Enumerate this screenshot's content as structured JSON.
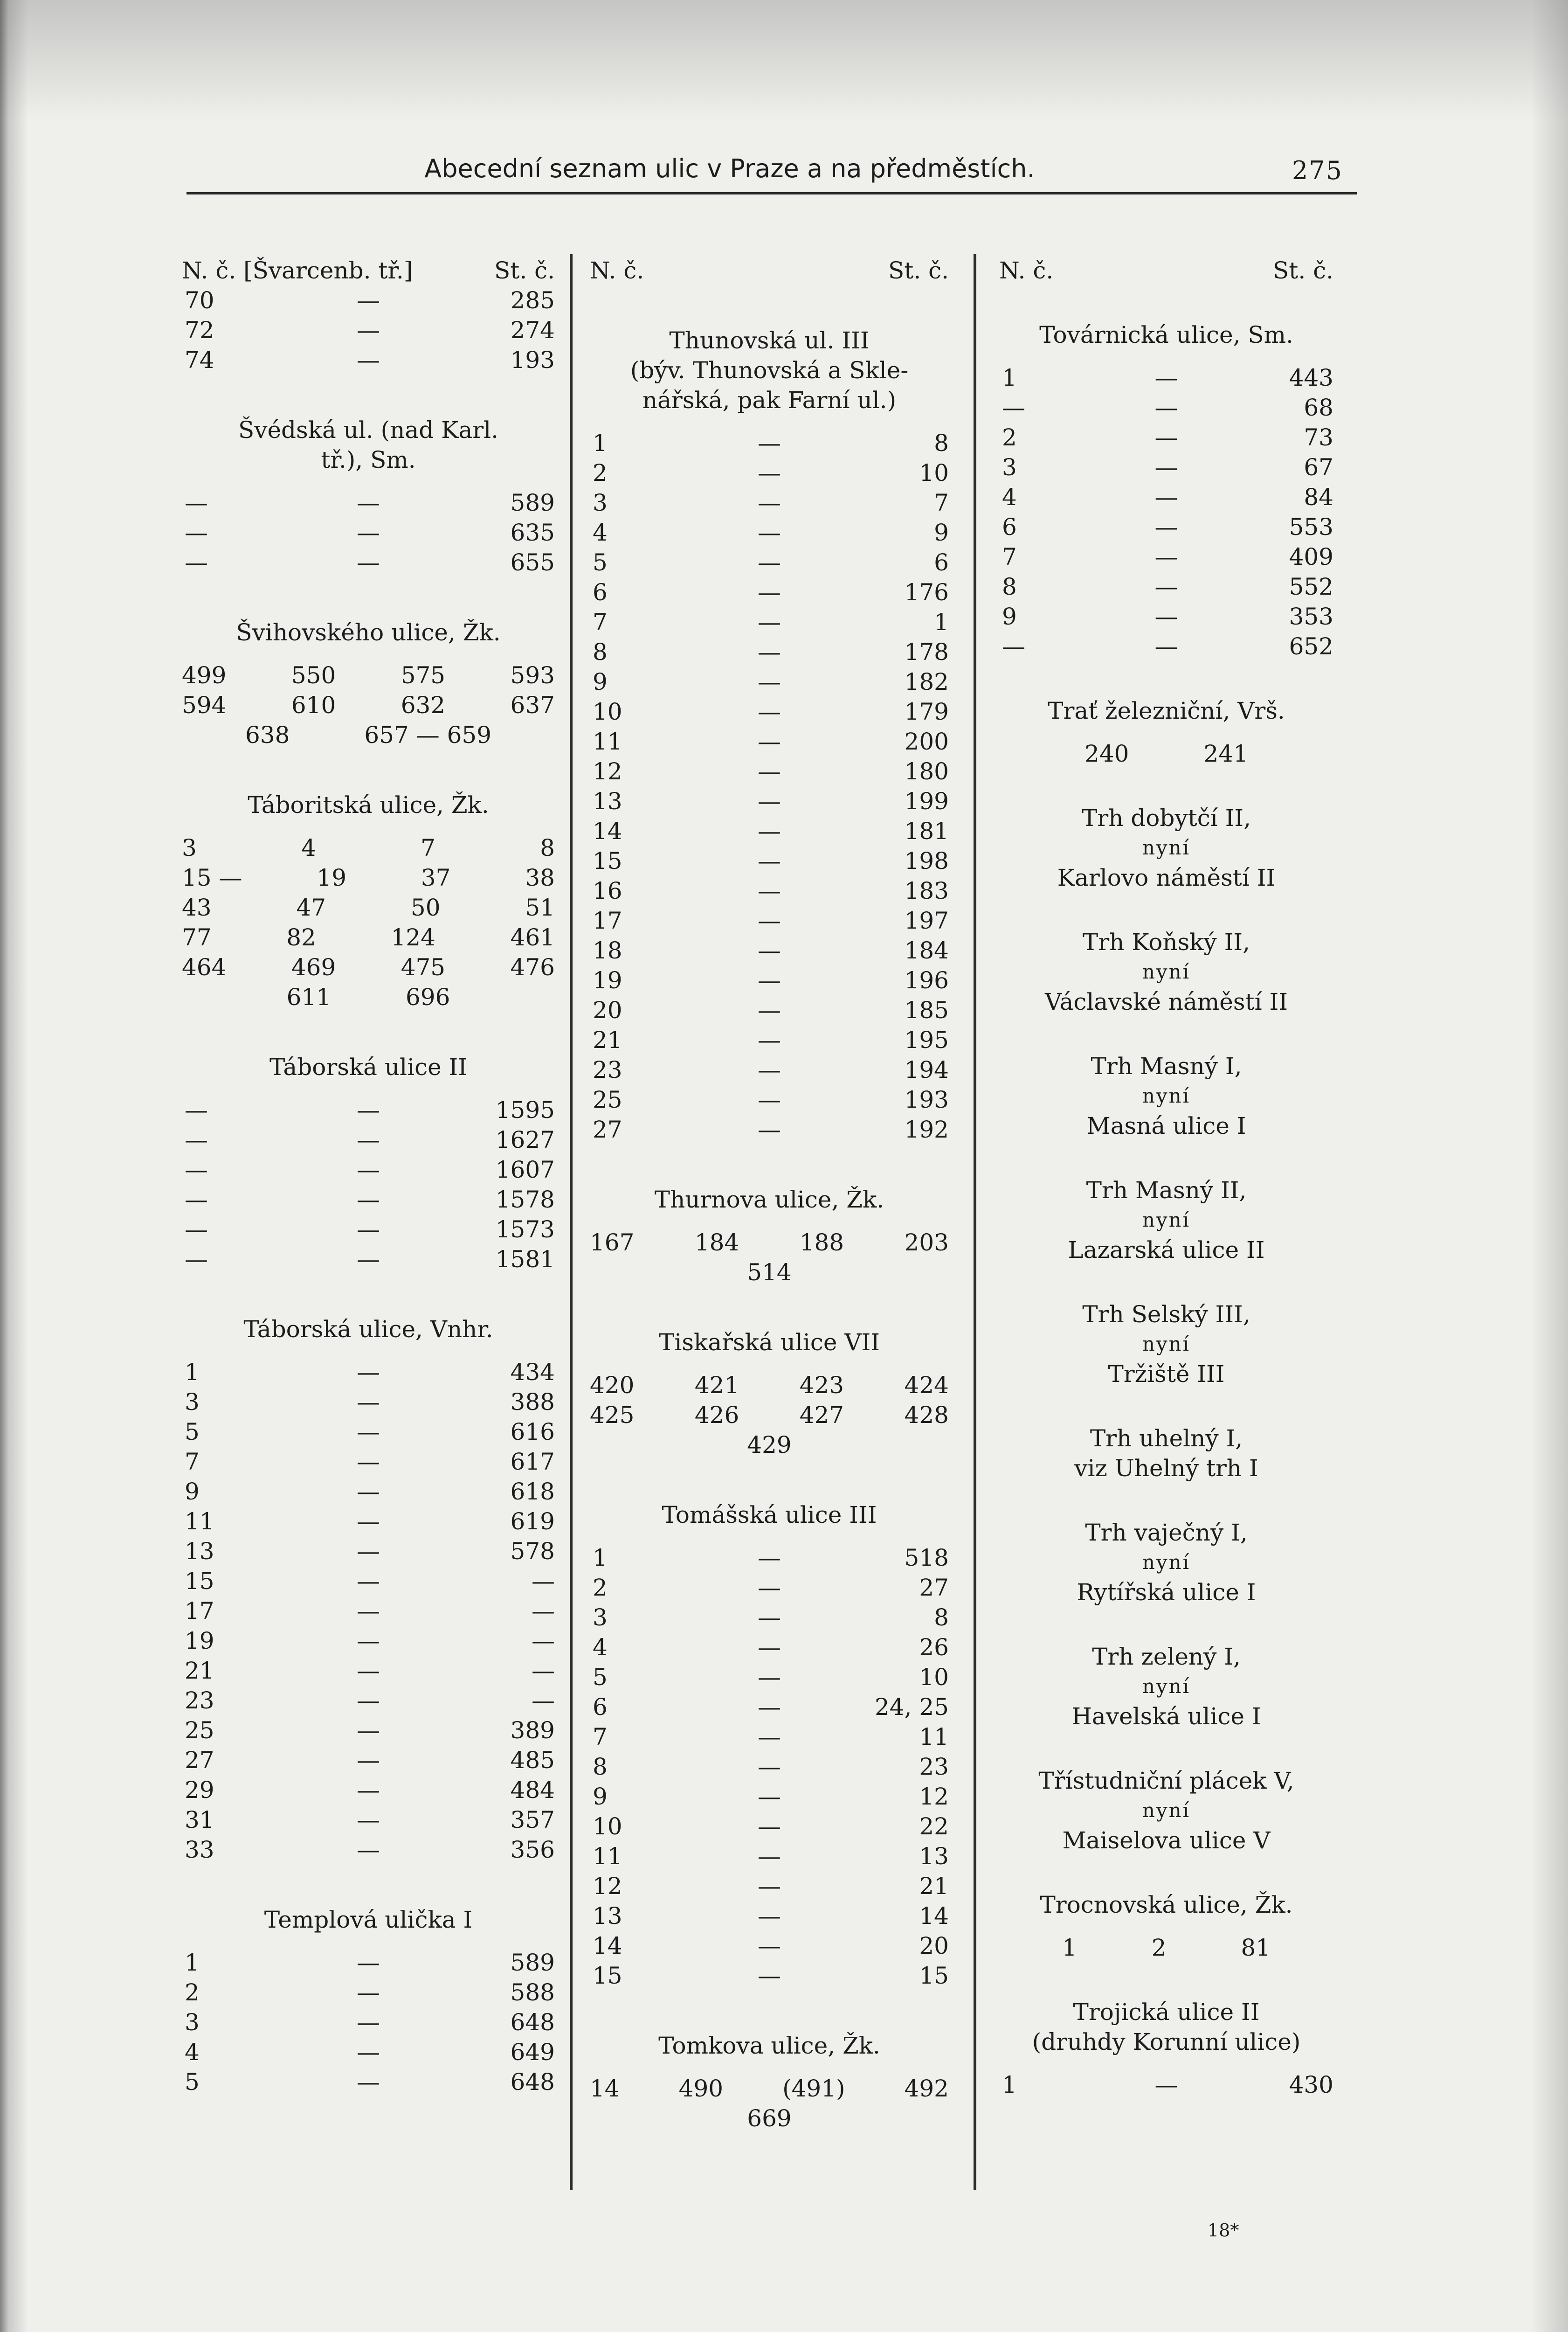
{
  "header": {
    "title": "Abecední seznam ulic v Praze a na předměstích.",
    "page_number": "275"
  },
  "footer": {
    "signature": "18*"
  },
  "columns": [
    {
      "blocks": [
        {
          "type": "head",
          "n": "N. č. [Švarcenb. tř.]",
          "st": "St. č."
        },
        {
          "type": "rows",
          "rows": [
            [
              "70",
              "—",
              "285"
            ],
            [
              "72",
              "—",
              "274"
            ],
            [
              "74",
              "—",
              "193"
            ]
          ]
        },
        {
          "type": "title",
          "lines": [
            "Švédská ul. (nad Karl.",
            "tř.), Sm."
          ]
        },
        {
          "type": "rows",
          "rows": [
            [
              "—",
              "—",
              "589"
            ],
            [
              "—",
              "—",
              "635"
            ],
            [
              "—",
              "—",
              "655"
            ]
          ]
        },
        {
          "type": "title",
          "lines": [
            "Švihovského ulice, Žk."
          ]
        },
        {
          "type": "grid",
          "rows": [
            [
              "499",
              "550",
              "575",
              "593"
            ],
            [
              "594",
              "610",
              "632",
              "637"
            ],
            [
              "638",
              "657 — 659"
            ]
          ]
        },
        {
          "type": "title",
          "lines": [
            "Táboritská ulice, Žk."
          ]
        },
        {
          "type": "grid",
          "rows": [
            [
              "3",
              "4",
              "7",
              "8"
            ],
            [
              "15 —",
              "19",
              "37",
              "38"
            ],
            [
              "43",
              "47",
              "50",
              "51"
            ],
            [
              "77",
              "82",
              "124",
              "461"
            ],
            [
              "464",
              "469",
              "475",
              "476"
            ],
            [
              "611",
              "696"
            ]
          ]
        },
        {
          "type": "title",
          "lines": [
            "Táborská ulice II"
          ]
        },
        {
          "type": "rows",
          "rows": [
            [
              "—",
              "—",
              "1595"
            ],
            [
              "—",
              "—",
              "1627"
            ],
            [
              "—",
              "—",
              "1607"
            ],
            [
              "—",
              "—",
              "1578"
            ],
            [
              "—",
              "—",
              "1573"
            ],
            [
              "—",
              "—",
              "1581"
            ]
          ]
        },
        {
          "type": "title",
          "lines": [
            "Táborská ulice, Vnhr."
          ]
        },
        {
          "type": "rows",
          "rows": [
            [
              "1",
              "—",
              "434"
            ],
            [
              "3",
              "—",
              "388"
            ],
            [
              "5",
              "—",
              "616"
            ],
            [
              "7",
              "—",
              "617"
            ],
            [
              "9",
              "—",
              "618"
            ],
            [
              "11",
              "—",
              "619"
            ],
            [
              "13",
              "—",
              "578"
            ],
            [
              "15",
              "—",
              "—"
            ],
            [
              "17",
              "—",
              "—"
            ],
            [
              "19",
              "—",
              "—"
            ],
            [
              "21",
              "—",
              "—"
            ],
            [
              "23",
              "—",
              "—"
            ],
            [
              "25",
              "—",
              "389"
            ],
            [
              "27",
              "—",
              "485"
            ],
            [
              "29",
              "—",
              "484"
            ],
            [
              "31",
              "—",
              "357"
            ],
            [
              "33",
              "—",
              "356"
            ]
          ]
        },
        {
          "type": "title",
          "lines": [
            "Templová ulička I"
          ]
        },
        {
          "type": "rows",
          "rows": [
            [
              "1",
              "—",
              "589"
            ],
            [
              "2",
              "—",
              "588"
            ],
            [
              "3",
              "—",
              "648"
            ],
            [
              "4",
              "—",
              "649"
            ],
            [
              "5",
              "—",
              "648"
            ]
          ]
        }
      ]
    },
    {
      "blocks": [
        {
          "type": "head",
          "n": "N. č.",
          "st": "St. č."
        },
        {
          "type": "title",
          "lines": [
            "Thunovská ul. III",
            "(býv. Thunovská a Skle-",
            "nářská, pak Farní ul.)"
          ]
        },
        {
          "type": "rows",
          "rows": [
            [
              "1",
              "—",
              "8"
            ],
            [
              "2",
              "—",
              "10"
            ],
            [
              "3",
              "—",
              "7"
            ],
            [
              "4",
              "—",
              "9"
            ],
            [
              "5",
              "—",
              "6"
            ],
            [
              "6",
              "—",
              "176"
            ],
            [
              "7",
              "—",
              "1"
            ],
            [
              "8",
              "—",
              "178"
            ],
            [
              "9",
              "—",
              "182"
            ],
            [
              "10",
              "—",
              "179"
            ],
            [
              "11",
              "—",
              "200"
            ],
            [
              "12",
              "—",
              "180"
            ],
            [
              "13",
              "—",
              "199"
            ],
            [
              "14",
              "—",
              "181"
            ],
            [
              "15",
              "—",
              "198"
            ],
            [
              "16",
              "—",
              "183"
            ],
            [
              "17",
              "—",
              "197"
            ],
            [
              "18",
              "—",
              "184"
            ],
            [
              "19",
              "—",
              "196"
            ],
            [
              "20",
              "—",
              "185"
            ],
            [
              "21",
              "—",
              "195"
            ],
            [
              "23",
              "—",
              "194"
            ],
            [
              "25",
              "—",
              "193"
            ],
            [
              "27",
              "—",
              "192"
            ]
          ]
        },
        {
          "type": "title",
          "lines": [
            "Thurnova ulice, Žk."
          ]
        },
        {
          "type": "grid",
          "rows": [
            [
              "167",
              "184",
              "188",
              "203"
            ],
            [
              "514"
            ]
          ]
        },
        {
          "type": "title",
          "lines": [
            "Tiskařská ulice VII"
          ]
        },
        {
          "type": "grid",
          "rows": [
            [
              "420",
              "421",
              "423",
              "424"
            ],
            [
              "425",
              "426",
              "427",
              "428"
            ],
            [
              "429"
            ]
          ]
        },
        {
          "type": "title",
          "lines": [
            "Tomášská ulice III"
          ]
        },
        {
          "type": "rows",
          "rows": [
            [
              "1",
              "—",
              "518"
            ],
            [
              "2",
              "—",
              "27"
            ],
            [
              "3",
              "—",
              "8"
            ],
            [
              "4",
              "—",
              "26"
            ],
            [
              "5",
              "—",
              "10"
            ],
            [
              "6",
              "—",
              "24, 25"
            ],
            [
              "7",
              "—",
              "11"
            ],
            [
              "8",
              "—",
              "23"
            ],
            [
              "9",
              "—",
              "12"
            ],
            [
              "10",
              "—",
              "22"
            ],
            [
              "11",
              "—",
              "13"
            ],
            [
              "12",
              "—",
              "21"
            ],
            [
              "13",
              "—",
              "14"
            ],
            [
              "14",
              "—",
              "20"
            ],
            [
              "15",
              "—",
              "15"
            ]
          ]
        },
        {
          "type": "title",
          "lines": [
            "Tomkova ulice, Žk."
          ]
        },
        {
          "type": "grid",
          "rows": [
            [
              "14",
              "490",
              "(491)",
              "492"
            ],
            [
              "669"
            ]
          ]
        }
      ]
    },
    {
      "blocks": [
        {
          "type": "head",
          "n": "N. č.",
          "st": "St. č."
        },
        {
          "type": "title",
          "lines": [
            "Továrnická ulice, Sm."
          ]
        },
        {
          "type": "rows",
          "rows": [
            [
              "1",
              "—",
              "443"
            ],
            [
              "—",
              "—",
              "68"
            ],
            [
              "2",
              "—",
              "73"
            ],
            [
              "3",
              "—",
              "67"
            ],
            [
              "4",
              "—",
              "84"
            ],
            [
              "6",
              "—",
              "553"
            ],
            [
              "7",
              "—",
              "409"
            ],
            [
              "8",
              "—",
              "552"
            ],
            [
              "9",
              "—",
              "353"
            ],
            [
              "—",
              "—",
              "652"
            ]
          ]
        },
        {
          "type": "title",
          "lines": [
            "Trať železniční, Vrš."
          ]
        },
        {
          "type": "grid",
          "rows": [
            [
              "240",
              "241"
            ]
          ]
        },
        {
          "type": "title",
          "lines": [
            "Trh dobytčí II,",
            "nyní",
            "Karlovo náměstí II"
          ]
        },
        {
          "type": "title",
          "lines": [
            "Trh Koňský II,",
            "nyní",
            "Václavské náměstí II"
          ]
        },
        {
          "type": "title",
          "lines": [
            "Trh Masný I,",
            "nyní",
            "Masná ulice I"
          ]
        },
        {
          "type": "title",
          "lines": [
            "Trh Masný II,",
            "nyní",
            "Lazarská ulice II"
          ]
        },
        {
          "type": "title",
          "lines": [
            "Trh Selský III,",
            "nyní",
            "Tržiště III"
          ]
        },
        {
          "type": "title",
          "lines": [
            "Trh uhelný I,",
            "viz Uhelný trh I"
          ]
        },
        {
          "type": "title",
          "lines": [
            "Trh vaječný I,",
            "nyní",
            "Rytířská ulice I"
          ]
        },
        {
          "type": "title",
          "lines": [
            "Trh zelený I,",
            "nyní",
            "Havelská ulice I"
          ]
        },
        {
          "type": "title",
          "lines": [
            "Třístudniční plácek V,",
            "nyní",
            "Maiselova ulice V"
          ]
        },
        {
          "type": "title",
          "lines": [
            "Trocnovská ulice, Žk."
          ]
        },
        {
          "type": "grid",
          "rows": [
            [
              "1",
              "2",
              "81"
            ]
          ]
        },
        {
          "type": "title",
          "lines": [
            "Trojická ulice II",
            "(druhdy Korunní ulice)"
          ]
        },
        {
          "type": "rows",
          "rows": [
            [
              "1",
              "—",
              "430"
            ]
          ]
        }
      ]
    }
  ]
}
